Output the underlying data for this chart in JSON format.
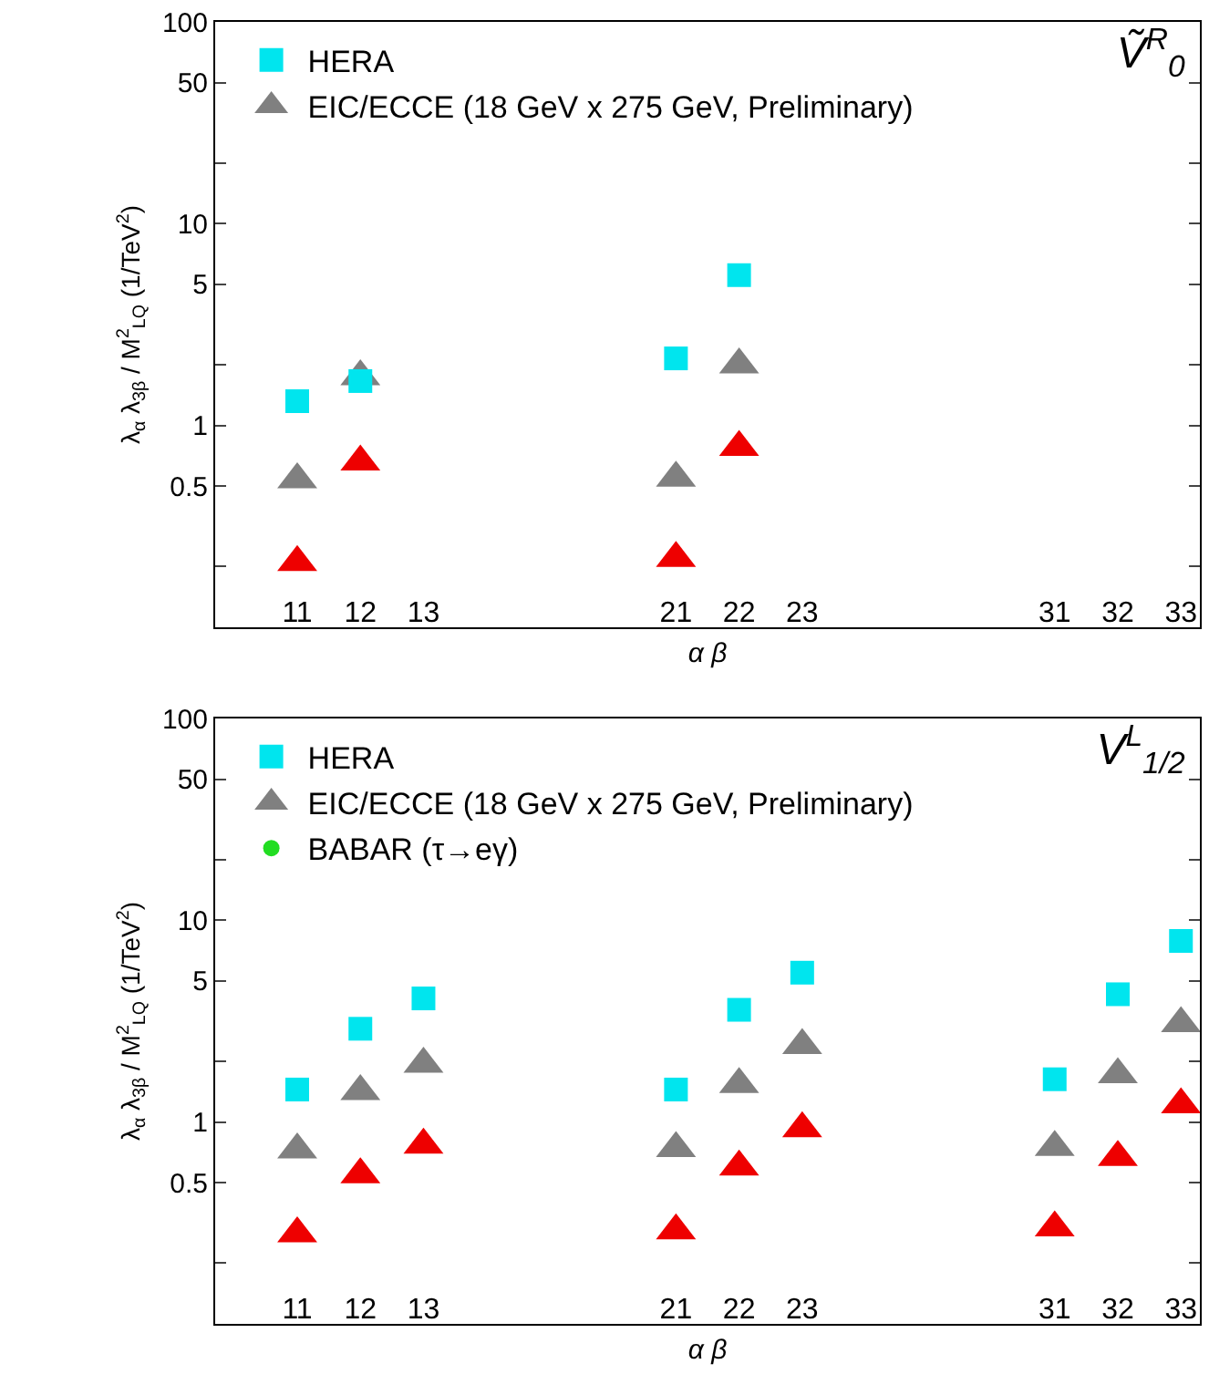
{
  "chart_data": [
    {
      "type": "scatter",
      "title": "Ṽ$^{R}$$_{0}$",
      "xlabel": "α β",
      "ylabel": "λ$_{α}$ λ$_{3β}$ / M$^{2}$$_{LQ}$ (1/TeV$^{2}$)",
      "categories": [
        "11",
        "12",
        "13",
        null,
        null,
        null,
        "21",
        "22",
        "23",
        null,
        null,
        null,
        "31",
        "32",
        "33"
      ],
      "log": "y",
      "ylim": [
        0.1,
        100
      ],
      "yticks": [
        {
          "value": 0.2,
          "label": null
        },
        0.5,
        1,
        {
          "value": 2,
          "label": null
        },
        5,
        10,
        {
          "value": 20,
          "label": null
        },
        50,
        100
      ],
      "grid": false,
      "legend": "top left",
      "series": [
        {
          "name": "HERA",
          "color": "#00e5ee",
          "marker": "square",
          "values": [
            1.32,
            1.66,
            null,
            null,
            null,
            null,
            2.15,
            5.56,
            null,
            null,
            null,
            null,
            null,
            null,
            null
          ]
        },
        {
          "color": "#ee0000",
          "marker": "triangle",
          "values": [
            0.21,
            0.66,
            null,
            null,
            null,
            null,
            0.22,
            0.78,
            null,
            null,
            null,
            null,
            null,
            null,
            null
          ]
        },
        {
          "name": "EIC/ECCE (18 GeV x 275 GeV, Preliminary)",
          "color": "#808080",
          "marker": "triangle",
          "values": [
            0.54,
            1.75,
            null,
            null,
            null,
            null,
            0.55,
            2.0,
            null,
            null,
            null,
            null,
            null,
            null,
            null
          ]
        }
      ]
    },
    {
      "type": "scatter",
      "title": "V$^{L}$$_{1/2}$",
      "xlabel": "α β",
      "ylabel": "λ$_{α}$ λ$_{3β}$ / M$^{2}$$_{LQ}$ (1/TeV$^{2}$)",
      "categories": [
        "11",
        "12",
        "13",
        null,
        null,
        null,
        "21",
        "22",
        "23",
        null,
        null,
        null,
        "31",
        "32",
        "33"
      ],
      "log": "y",
      "ylim": [
        0.1,
        100
      ],
      "yticks": [
        {
          "value": 0.2,
          "label": null
        },
        0.5,
        1,
        {
          "value": 2,
          "label": null
        },
        5,
        10,
        {
          "value": 20,
          "label": null
        },
        50,
        100
      ],
      "grid": false,
      "legend": "top left",
      "series": [
        {
          "name": "HERA",
          "color": "#00e5ee",
          "marker": "square",
          "values": [
            1.45,
            2.9,
            4.1,
            null,
            null,
            null,
            1.45,
            3.6,
            5.5,
            null,
            null,
            null,
            1.63,
            4.3,
            7.9
          ]
        },
        {
          "color": "#ee0000",
          "marker": "triangle",
          "values": [
            0.28,
            0.55,
            0.77,
            null,
            null,
            null,
            0.29,
            0.6,
            0.93,
            null,
            null,
            null,
            0.3,
            0.67,
            1.22
          ]
        },
        {
          "name": "EIC/ECCE (18 GeV x 275 GeV, Preliminary)",
          "color": "#808080",
          "marker": "triangle",
          "values": [
            0.73,
            1.42,
            1.94,
            null,
            null,
            null,
            0.74,
            1.54,
            2.4,
            null,
            null,
            null,
            0.75,
            1.72,
            3.08
          ]
        },
        {
          "name": "BABAR (τ→eγ)",
          "color": "#22dd22",
          "marker": "circle",
          "values": [
            null,
            null,
            null,
            null,
            null,
            null,
            null,
            null,
            null,
            null,
            null,
            null,
            null,
            null,
            null
          ]
        }
      ]
    }
  ]
}
